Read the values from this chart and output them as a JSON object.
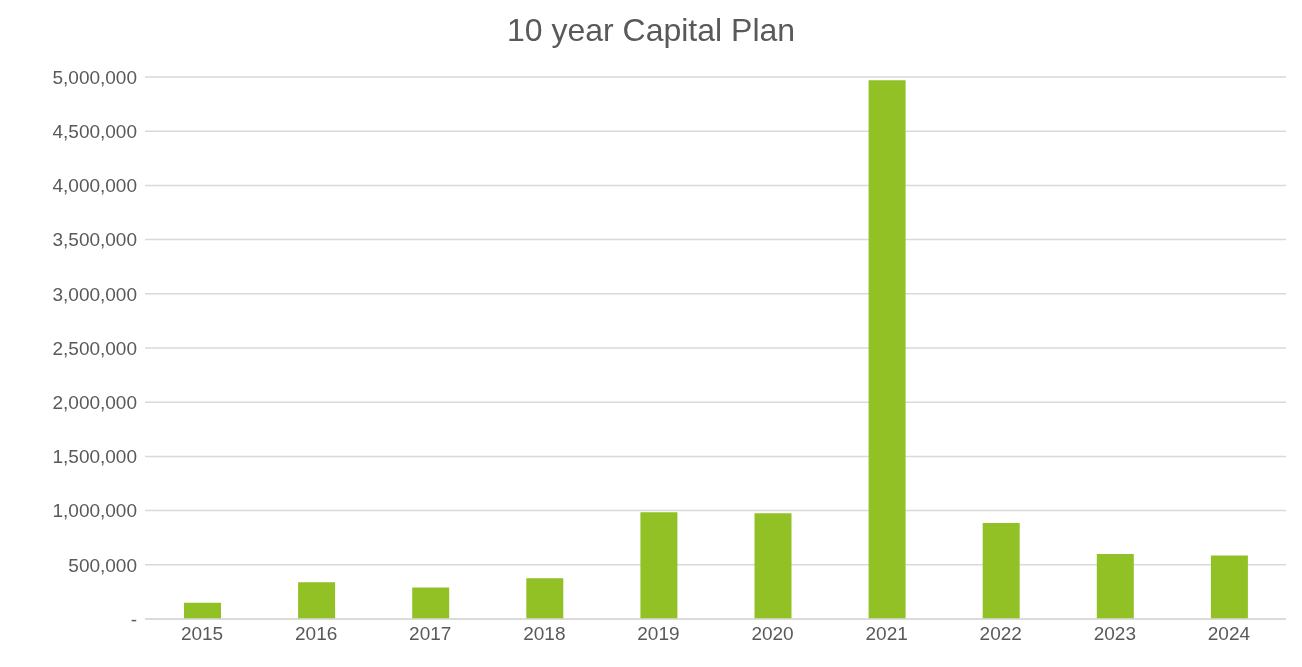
{
  "chart_data": {
    "type": "bar",
    "title": "10 year Capital Plan",
    "categories": [
      "2015",
      "2016",
      "2017",
      "2018",
      "2019",
      "2020",
      "2021",
      "2022",
      "2023",
      "2024"
    ],
    "values": [
      150000,
      340000,
      290000,
      375000,
      985000,
      975000,
      4970000,
      885000,
      600000,
      585000
    ],
    "color": "#92c126",
    "ylim": [
      0,
      5000000
    ],
    "yticks": [
      {
        "value": 0,
        "label": "-"
      },
      {
        "value": 500000,
        "label": "500,000"
      },
      {
        "value": 1000000,
        "label": "1,000,000"
      },
      {
        "value": 1500000,
        "label": "1,500,000"
      },
      {
        "value": 2000000,
        "label": "2,000,000"
      },
      {
        "value": 2500000,
        "label": "2,500,000"
      },
      {
        "value": 3000000,
        "label": "3,000,000"
      },
      {
        "value": 3500000,
        "label": "3,500,000"
      },
      {
        "value": 4000000,
        "label": "4,000,000"
      },
      {
        "value": 4500000,
        "label": "4,500,000"
      },
      {
        "value": 5000000,
        "label": "5,000,000"
      }
    ],
    "grid": "y"
  }
}
